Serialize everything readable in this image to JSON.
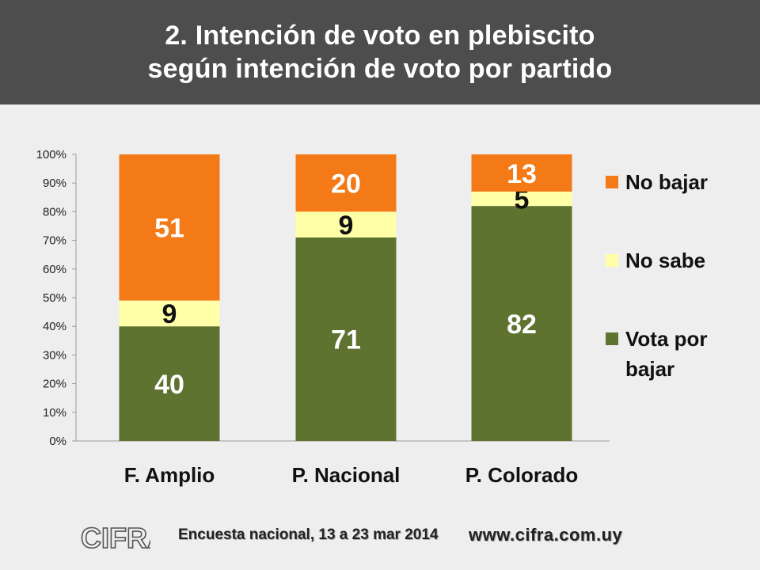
{
  "header": {
    "title_line1": "2. Intención de voto en plebiscito",
    "title_line2": "según intención de voto por partido"
  },
  "chart_data": {
    "type": "bar",
    "stacked": true,
    "percent_axis": true,
    "categories": [
      "F. Amplio",
      "P. Nacional",
      "P. Colorado"
    ],
    "series": [
      {
        "name": "Vota por bajar",
        "values": [
          40,
          71,
          82
        ],
        "color": "#5e7330",
        "label_color": "#ffffff"
      },
      {
        "name": "No sabe",
        "values": [
          9,
          9,
          5
        ],
        "color": "#ffffa8",
        "label_color": "#111111"
      },
      {
        "name": "No bajar",
        "values": [
          51,
          20,
          13
        ],
        "color": "#f47a17",
        "label_color": "#ffffff"
      }
    ],
    "legend_order": [
      "No bajar",
      "No sabe",
      "Vota por bajar"
    ],
    "y_ticks": [
      "0%",
      "10%",
      "20%",
      "30%",
      "40%",
      "50%",
      "60%",
      "70%",
      "80%",
      "90%",
      "100%"
    ],
    "ylim": [
      0,
      100
    ],
    "legend_position": "right",
    "grid": false
  },
  "footer": {
    "logo_text": "CIFRA",
    "survey": "Encuesta nacional, 13 a 23 mar 2014",
    "website": "www.cifra.com.uy"
  }
}
